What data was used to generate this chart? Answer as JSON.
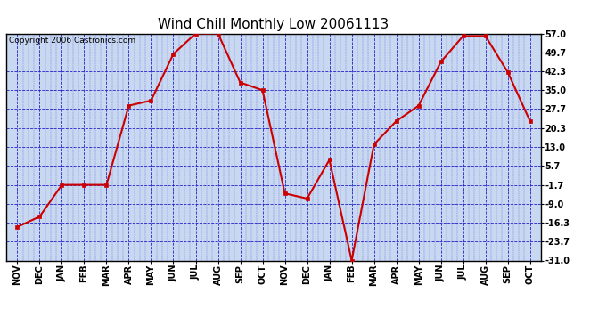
{
  "title": "Wind Chill Monthly Low 20061113",
  "copyright": "Copyright 2006 Castronics.com",
  "x_labels": [
    "NOV",
    "DEC",
    "JAN",
    "FEB",
    "MAR",
    "APR",
    "MAY",
    "JUN",
    "JUL",
    "AUG",
    "SEP",
    "OCT",
    "NOV",
    "DEC",
    "JAN",
    "FEB",
    "MAR",
    "APR",
    "MAY",
    "JUN",
    "JUL",
    "AUG",
    "SEP",
    "OCT"
  ],
  "y_values": [
    -18.0,
    -14.0,
    -1.7,
    -1.7,
    -1.7,
    29.0,
    31.0,
    49.0,
    57.0,
    57.0,
    38.0,
    35.0,
    -5.0,
    -7.0,
    8.0,
    -31.0,
    14.0,
    23.0,
    29.0,
    46.0,
    56.0,
    56.0,
    42.0,
    23.0
  ],
  "y_ticks": [
    57.0,
    49.7,
    42.3,
    35.0,
    27.7,
    20.3,
    13.0,
    5.7,
    -1.7,
    -9.0,
    -16.3,
    -23.7,
    -31.0
  ],
  "y_tick_labels": [
    "57.0",
    "49.7",
    "42.3",
    "35.0",
    "27.7",
    "20.3",
    "13.0",
    "5.7",
    "-1.7",
    "-9.0",
    "-16.3",
    "-23.7",
    "-31.0"
  ],
  "y_min": -31.0,
  "y_max": 57.0,
  "line_color": "#cc0000",
  "marker_color": "#cc0000",
  "bg_color": "#c8d8f0",
  "grid_color": "#2222cc",
  "border_color": "#000000",
  "title_fontsize": 11,
  "label_fontsize": 7,
  "copyright_fontsize": 6.5
}
